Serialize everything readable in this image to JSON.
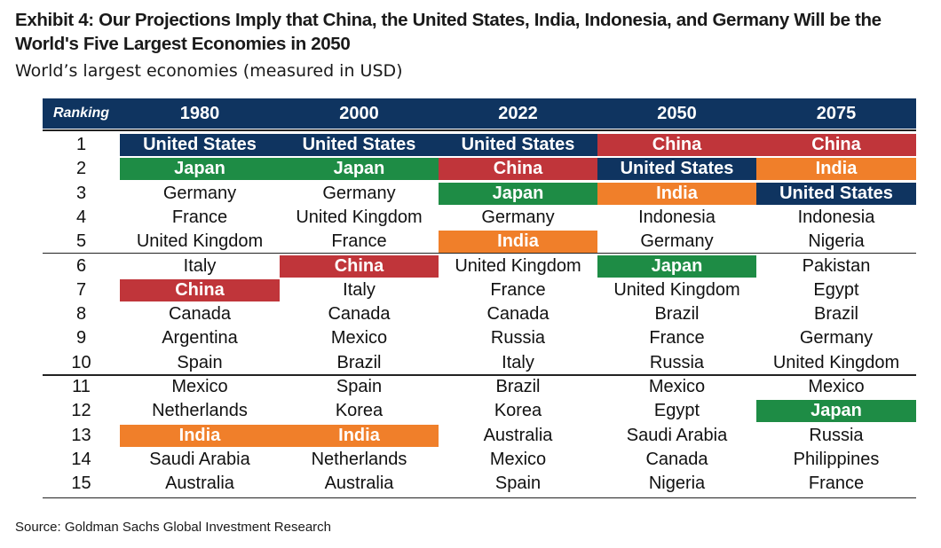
{
  "title": "Exhibit 4: Our Projections Imply that China, the United States, India, Indonesia, and Germany Will be the World's Five Largest Economies in 2050",
  "subtitle": "World’s largest economies (measured in USD)",
  "source": "Source: Goldman Sachs Global Investment Research",
  "colors": {
    "header_bg": "#0f3460",
    "United States": "#0f3460",
    "Japan": "#1e8c45",
    "China": "#c0353a",
    "India": "#f07f2a"
  },
  "highlighted_countries": [
    "United States",
    "Japan",
    "China",
    "India"
  ],
  "chart_data": {
    "type": "table",
    "columns": [
      "Ranking",
      "1980",
      "2000",
      "2022",
      "2050",
      "2075"
    ],
    "rows": [
      [
        "1",
        "United States",
        "United States",
        "United States",
        "China",
        "China"
      ],
      [
        "2",
        "Japan",
        "Japan",
        "China",
        "United States",
        "India"
      ],
      [
        "3",
        "Germany",
        "Germany",
        "Japan",
        "India",
        "United States"
      ],
      [
        "4",
        "France",
        "United Kingdom",
        "Germany",
        "Indonesia",
        "Indonesia"
      ],
      [
        "5",
        "United Kingdom",
        "France",
        "India",
        "Germany",
        "Nigeria"
      ],
      [
        "6",
        "Italy",
        "China",
        "United Kingdom",
        "Japan",
        "Pakistan"
      ],
      [
        "7",
        "China",
        "Italy",
        "France",
        "United Kingdom",
        "Egypt"
      ],
      [
        "8",
        "Canada",
        "Canada",
        "Canada",
        "Brazil",
        "Brazil"
      ],
      [
        "9",
        "Argentina",
        "Mexico",
        "Russia",
        "France",
        "Germany"
      ],
      [
        "10",
        "Spain",
        "Brazil",
        "Italy",
        "Russia",
        "United Kingdom"
      ],
      [
        "11",
        "Mexico",
        "Spain",
        "Brazil",
        "Mexico",
        "Mexico"
      ],
      [
        "12",
        "Netherlands",
        "Korea",
        "Korea",
        "Egypt",
        "Japan"
      ],
      [
        "13",
        "India",
        "India",
        "Australia",
        "Saudi Arabia",
        "Russia"
      ],
      [
        "14",
        "Saudi Arabia",
        "Netherlands",
        "Mexico",
        "Canada",
        "Philippines"
      ],
      [
        "15",
        "Australia",
        "Australia",
        "Spain",
        "Nigeria",
        "France"
      ]
    ]
  }
}
